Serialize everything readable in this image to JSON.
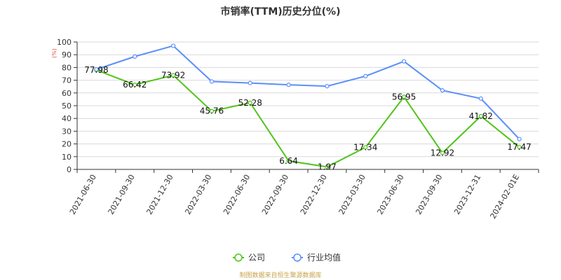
{
  "chart_data": {
    "type": "line",
    "title": "市销率(TTM)历史分位(%)",
    "ylabel": "(%)",
    "ylim": [
      0,
      100
    ],
    "yticks": [
      0,
      10,
      20,
      30,
      40,
      50,
      60,
      70,
      80,
      90,
      100
    ],
    "categories": [
      "2021-06-30",
      "2021-09-30",
      "2021-12-30",
      "2022-03-30",
      "2022-06-30",
      "2022-09-30",
      "2022-12-30",
      "2023-03-30",
      "2023-06-30",
      "2023-09-30",
      "2023-12-31",
      "2024-02-01E"
    ],
    "grid": true,
    "legend_position": "bottom",
    "series": [
      {
        "name": "公司",
        "color": "#52c41a",
        "values": [
          77.98,
          66.42,
          73.92,
          45.76,
          52.28,
          6.64,
          1.97,
          17.34,
          56.95,
          12.92,
          41.82,
          17.47
        ],
        "labels": [
          "77.98",
          "66.42",
          "73.92",
          "45.76",
          "52.28",
          "6.64",
          "1.97",
          "17.34",
          "56.95",
          "12.92",
          "41.82",
          "17.47"
        ]
      },
      {
        "name": "行业均值",
        "color": "#5b8ff9",
        "values": [
          78.5,
          88.6,
          97.0,
          69.0,
          67.8,
          66.4,
          65.3,
          73.2,
          84.8,
          62.0,
          55.6,
          23.8
        ]
      }
    ]
  },
  "footer": {
    "source": "制图数据来自恒生聚源数据库"
  }
}
